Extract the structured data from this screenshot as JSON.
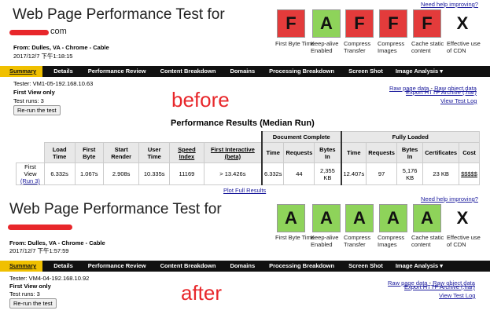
{
  "before": {
    "title": "Web Page Performance Test for",
    "title_suffix": "com",
    "from": "From: Dulles, VA - Chrome - Cable",
    "date": "2017/12/7 下午1:18:15",
    "help": "Need help improving?",
    "grades": [
      {
        "letter": "F",
        "label": "First Byte Time",
        "color": "#e33b3b"
      },
      {
        "letter": "A",
        "label": "Keep-alive Enabled",
        "color": "#8ed35a"
      },
      {
        "letter": "F",
        "label": "Compress Transfer",
        "color": "#e33b3b"
      },
      {
        "letter": "F",
        "label": "Compress Images",
        "color": "#e33b3b"
      },
      {
        "letter": "F",
        "label": "Cache static content",
        "color": "#e33b3b"
      },
      {
        "letter": "X",
        "label": "Effective use of CDN",
        "color": "#ffffff"
      }
    ],
    "tester": "Tester: VM1-05-192.168.10.63",
    "first_view_only": "First View only",
    "test_runs": "Test runs: 3",
    "rerun": "Re-run the test",
    "links": [
      "Raw page data",
      " - ",
      "Raw object data",
      "Export HTTP Archive (.har)",
      "View Test Log"
    ],
    "annotation": "before"
  },
  "after": {
    "title": "Web Page Performance Test for",
    "from": "From: Dulles, VA - Chrome - Cable",
    "date": "2017/12/7 下午1:57:59",
    "help": "Need help improving?",
    "grades": [
      {
        "letter": "A",
        "label": "First Byte Time",
        "color": "#8ed35a"
      },
      {
        "letter": "A",
        "label": "Keep-alive Enabled",
        "color": "#8ed35a"
      },
      {
        "letter": "A",
        "label": "Compress Transfer",
        "color": "#8ed35a"
      },
      {
        "letter": "A",
        "label": "Compress Images",
        "color": "#8ed35a"
      },
      {
        "letter": "A",
        "label": "Cache static content",
        "color": "#8ed35a"
      },
      {
        "letter": "X",
        "label": "Effective use of CDN",
        "color": "#ffffff"
      }
    ],
    "tester": "Tester: VM4-04-192.168.10.92",
    "first_view_only": "First View only",
    "test_runs": "Test runs: 3",
    "rerun": "Re-run the test",
    "links": [
      "Raw page data",
      " - ",
      "Raw object data",
      "Export HTTP Archive (.har)",
      "View Test Log"
    ],
    "annotation": "after"
  },
  "nav": [
    "Summary",
    "Details",
    "Performance Review",
    "Content Breakdown",
    "Domains",
    "Processing Breakdown",
    "Screen Shot",
    "Image Analysis ▾"
  ],
  "results": {
    "heading": "Performance Results (Median Run)",
    "group_doc": "Document Complete",
    "group_full": "Fully Loaded",
    "headers": [
      "Load Time",
      "First Byte",
      "Start Render",
      "User Time",
      "Speed Index",
      "First Interactive (beta)",
      "Time",
      "Requests",
      "Bytes In",
      "Time",
      "Requests",
      "Bytes In",
      "Certificates",
      "Cost"
    ],
    "row_label": "First View",
    "row_run": "(Run 3)",
    "values": [
      "6.332s",
      "1.067s",
      "2.908s",
      "10.335s",
      "11169",
      "> 13.426s",
      "6.332s",
      "44",
      "2,355 KB",
      "12.407s",
      "97",
      "5,176 KB",
      "23 KB",
      "$$$$$"
    ],
    "plot_link": "Plot Full Results"
  }
}
